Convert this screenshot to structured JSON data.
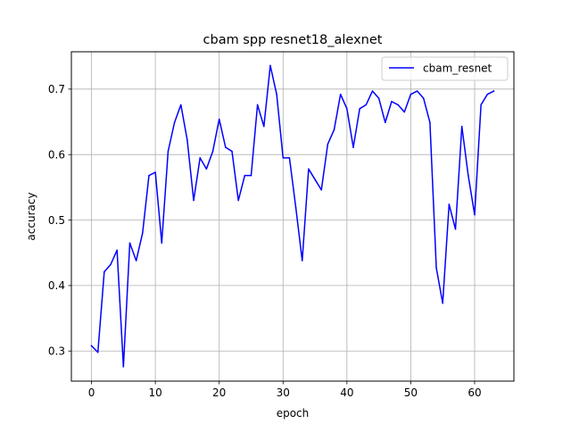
{
  "chart_data": {
    "type": "line",
    "title": "cbam spp resnet18_alexnet",
    "xlabel": "epoch",
    "ylabel": "accuracy",
    "xlim": [
      -3.15,
      66.15
    ],
    "ylim": [
      0.254,
      0.757
    ],
    "xticks": [
      0,
      10,
      20,
      30,
      40,
      50,
      60
    ],
    "xtick_labels": [
      "0",
      "10",
      "20",
      "30",
      "40",
      "50",
      "60"
    ],
    "yticks": [
      0.3,
      0.4,
      0.5,
      0.6,
      0.7
    ],
    "ytick_labels": [
      "0.3",
      "0.4",
      "0.5",
      "0.6",
      "0.7"
    ],
    "grid": true,
    "legend_position": "top-right",
    "series": [
      {
        "name": "cbam_resnet",
        "color": "#0000ff",
        "x": [
          0,
          1,
          2,
          3,
          4,
          5,
          6,
          7,
          8,
          9,
          10,
          11,
          12,
          13,
          14,
          15,
          16,
          17,
          18,
          19,
          20,
          21,
          22,
          23,
          24,
          25,
          26,
          27,
          28,
          29,
          30,
          31,
          32,
          33,
          34,
          35,
          36,
          37,
          38,
          39,
          40,
          41,
          42,
          43,
          44,
          45,
          46,
          47,
          48,
          49,
          50,
          51,
          52,
          53,
          54,
          55,
          56,
          57,
          58,
          59,
          60,
          61,
          62,
          63
        ],
        "values": [
          0.308,
          0.298,
          0.421,
          0.432,
          0.454,
          0.276,
          0.465,
          0.438,
          0.48,
          0.568,
          0.573,
          0.465,
          0.605,
          0.649,
          0.676,
          0.622,
          0.53,
          0.595,
          0.578,
          0.605,
          0.654,
          0.611,
          0.605,
          0.53,
          0.568,
          0.568,
          0.676,
          0.643,
          0.736,
          0.692,
          0.595,
          0.595,
          0.519,
          0.438,
          0.578,
          0.562,
          0.546,
          0.616,
          0.638,
          0.692,
          0.67,
          0.611,
          0.67,
          0.676,
          0.697,
          0.686,
          0.649,
          0.681,
          0.676,
          0.665,
          0.692,
          0.697,
          0.686,
          0.649,
          0.427,
          0.373,
          0.524,
          0.486,
          0.643,
          0.568,
          0.508,
          0.676,
          0.692,
          0.697
        ]
      }
    ]
  }
}
